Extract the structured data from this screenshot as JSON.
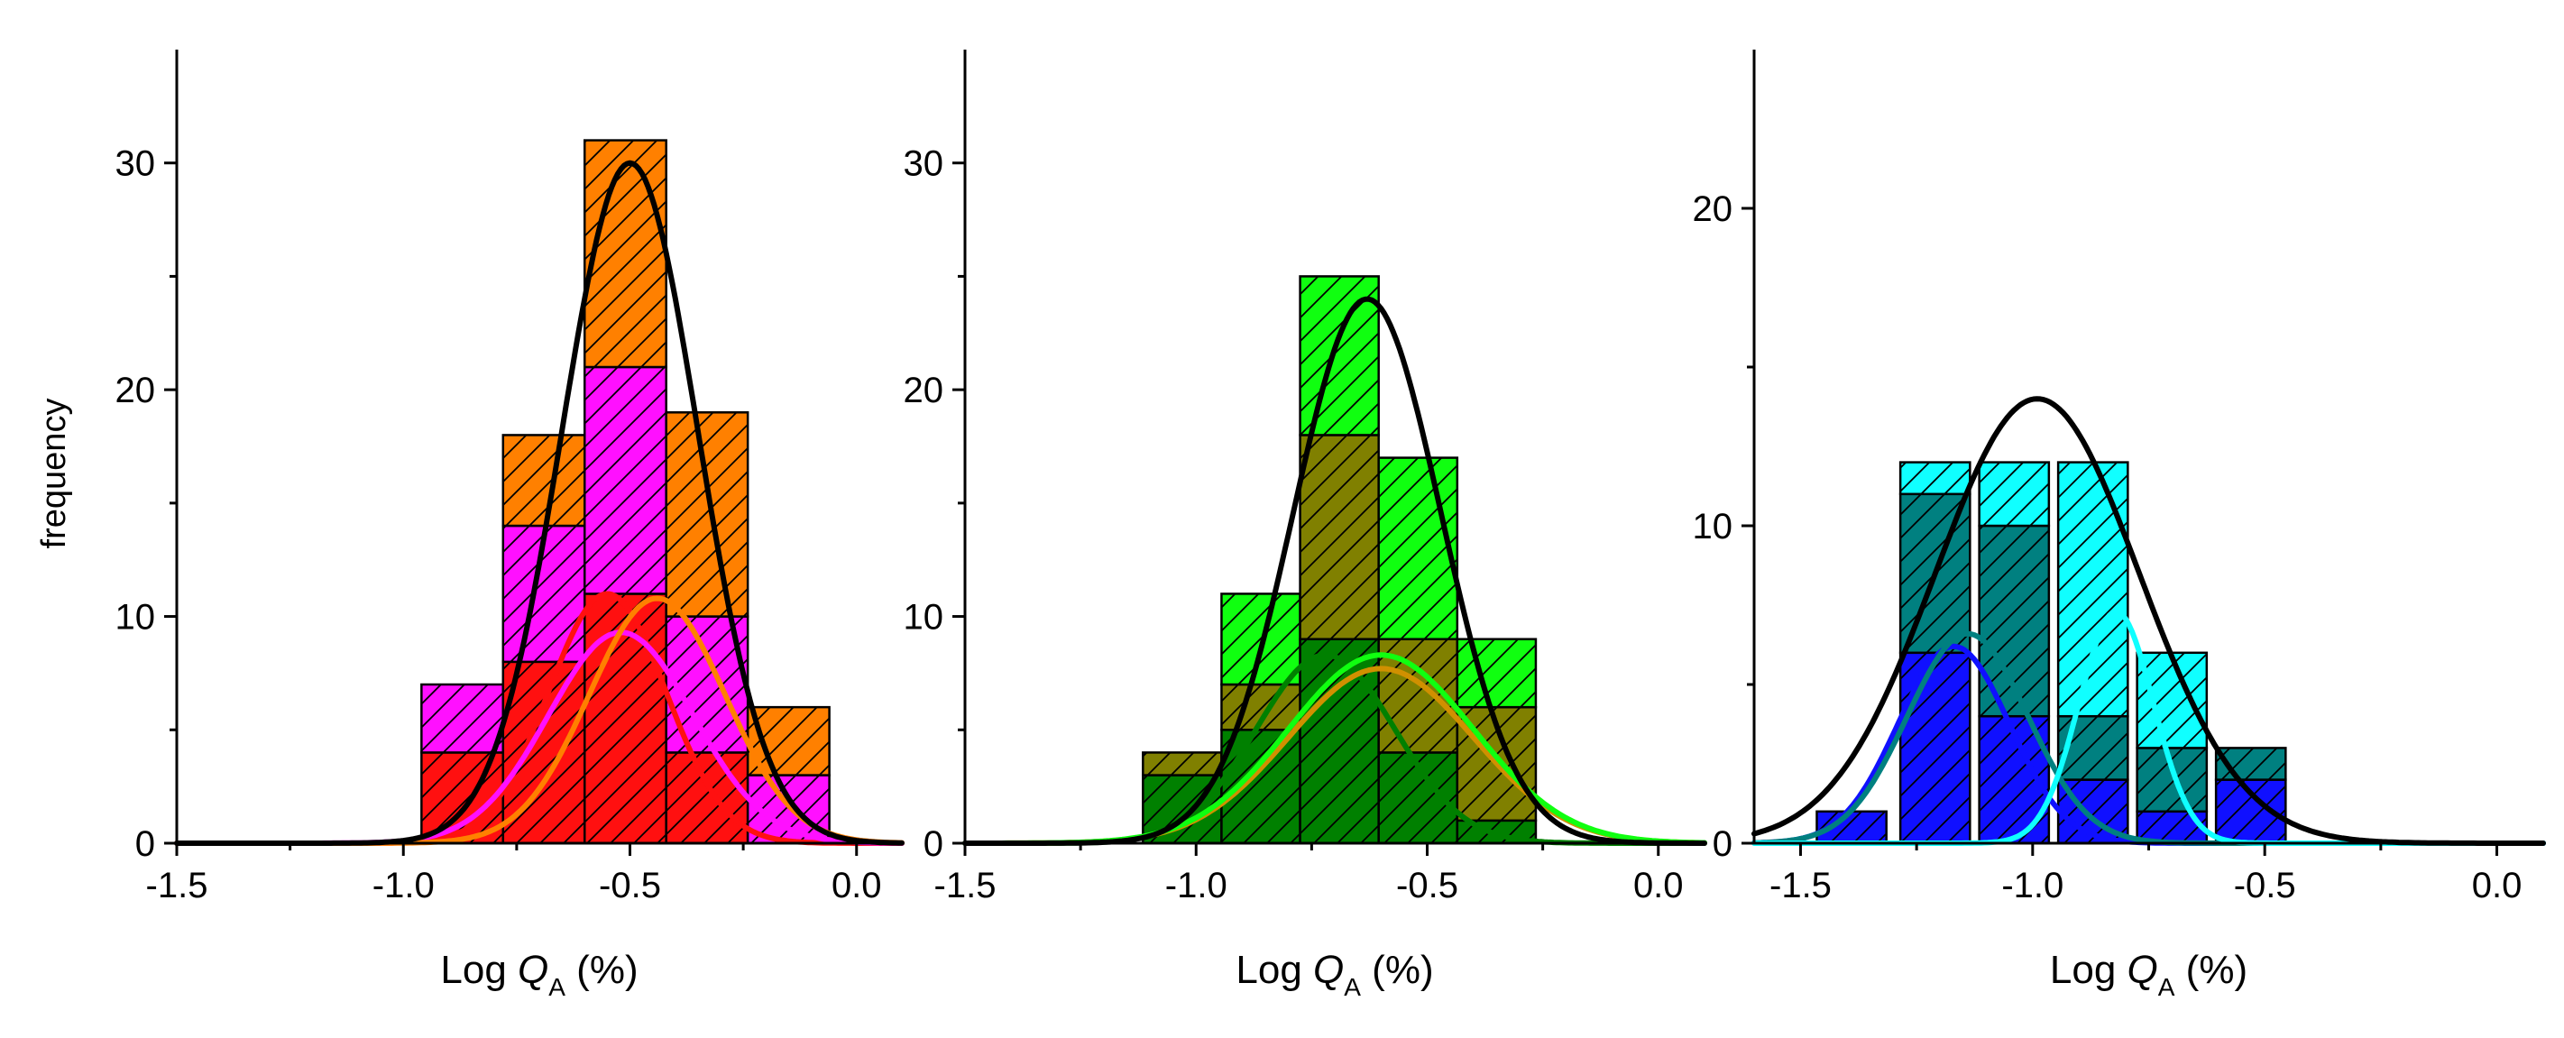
{
  "chart_data": [
    {
      "type": "bar",
      "stacked": true,
      "bin_width": 0.18,
      "bin_centers": [
        -0.87,
        -0.69,
        -0.51,
        -0.33,
        -0.15
      ],
      "series": [
        {
          "name": "red",
          "color": "#ff1010",
          "values": [
            4,
            8,
            11,
            4,
            0
          ]
        },
        {
          "name": "magenta",
          "color": "#ff10ff",
          "values": [
            3,
            6,
            10,
            6,
            3
          ]
        },
        {
          "name": "orange",
          "color": "#ff8000",
          "values": [
            0,
            4,
            10,
            9,
            3
          ]
        }
      ],
      "fits": [
        {
          "name": "total",
          "color": "#000000",
          "type": "gauss",
          "amp": 30,
          "mu": -0.5,
          "sigma": 0.15
        },
        {
          "name": "red",
          "color": "#ff1010",
          "type": "gauss",
          "amp": 11,
          "mu": -0.55,
          "sigma": 0.13
        },
        {
          "name": "magenta",
          "color": "#ff10ff",
          "type": "gauss",
          "amp": 9.3,
          "mu": -0.52,
          "sigma": 0.16
        },
        {
          "name": "orange",
          "color": "#ff8000",
          "type": "gauss",
          "amp": 10.8,
          "mu": -0.44,
          "sigma": 0.15
        }
      ],
      "xlim": [
        -1.5,
        0.1
      ],
      "ylim": [
        0,
        35
      ],
      "xticks": [
        -1.5,
        -1.0,
        -0.5,
        0.0
      ],
      "xtick_labels": [
        "-1.5",
        "-1.0",
        "-0.5",
        "0.0"
      ],
      "yticks": [
        0,
        10,
        20,
        30
      ],
      "ytick_labels": [
        "0",
        "10",
        "20",
        "30"
      ],
      "xlabel": {
        "prefix": "Log ",
        "var": "Q",
        "sub": "A",
        "suffix": " (%)"
      },
      "ylabel": "frequency"
    },
    {
      "type": "bar",
      "stacked": true,
      "bin_width": 0.17,
      "bin_centers": [
        -1.03,
        -0.86,
        -0.69,
        -0.52,
        -0.35
      ],
      "series": [
        {
          "name": "dark green",
          "color": "#008000",
          "values": [
            3,
            5,
            9,
            4,
            1
          ]
        },
        {
          "name": "olive",
          "color": "#808000",
          "values": [
            1,
            2,
            9,
            5,
            5
          ]
        },
        {
          "name": "bright green",
          "color": "#10ff10",
          "values": [
            0,
            4,
            7,
            8,
            3
          ]
        }
      ],
      "fits": [
        {
          "name": "total",
          "color": "#000000",
          "type": "gauss",
          "amp": 24,
          "mu": -0.63,
          "sigma": 0.16
        },
        {
          "name": "dark green",
          "color": "#008000",
          "type": "gauss",
          "amp": 8.3,
          "mu": -0.72,
          "sigma": 0.15
        },
        {
          "name": "olive",
          "color": "#d09000",
          "type": "gauss",
          "amp": 7.7,
          "mu": -0.6,
          "sigma": 0.2
        },
        {
          "name": "bright green",
          "color": "#10ff10",
          "type": "gauss",
          "amp": 8.3,
          "mu": -0.6,
          "sigma": 0.2
        }
      ],
      "xlim": [
        -1.5,
        0.1
      ],
      "ylim": [
        0,
        35
      ],
      "xticks": [
        -1.5,
        -1.0,
        -0.5,
        0.0
      ],
      "xtick_labels": [
        "-1.5",
        "-1.0",
        "-0.5",
        "0.0"
      ],
      "yticks": [
        0,
        10,
        20,
        30
      ],
      "ytick_labels": [
        "0",
        "10",
        "20",
        "30"
      ],
      "xlabel": {
        "prefix": "Log ",
        "var": "Q",
        "sub": "A",
        "suffix": " (%)"
      },
      "ylabel": ""
    },
    {
      "type": "bar",
      "stacked": true,
      "bin_width": 0.15,
      "bin_centers": [
        -1.39,
        -1.21,
        -1.04,
        -0.87,
        -0.7,
        -0.53
      ],
      "series": [
        {
          "name": "blue",
          "color": "#1010ff",
          "values": [
            1,
            6,
            4,
            2,
            1,
            2
          ]
        },
        {
          "name": "teal",
          "color": "#008080",
          "values": [
            0,
            5,
            6,
            2,
            2,
            1
          ]
        },
        {
          "name": "cyan",
          "color": "#10ffff",
          "values": [
            0,
            1,
            2,
            8,
            3,
            0
          ]
        }
      ],
      "fits": [
        {
          "name": "total",
          "color": "#000000",
          "type": "gauss",
          "amp": 14,
          "mu": -0.99,
          "sigma": 0.22
        },
        {
          "name": "blue",
          "color": "#1010ff",
          "type": "gauss",
          "amp": 6.2,
          "mu": -1.17,
          "sigma": 0.12
        },
        {
          "name": "teal",
          "color": "#008080",
          "type": "gauss",
          "amp": 6.6,
          "mu": -1.14,
          "sigma": 0.13
        },
        {
          "name": "cyan",
          "color": "#10ffff",
          "type": "gauss",
          "amp": 7.3,
          "mu": -0.82,
          "sigma": 0.08
        }
      ],
      "xlim": [
        -1.6,
        0.1
      ],
      "ylim": [
        0,
        25
      ],
      "xticks": [
        -1.5,
        -1.0,
        -0.5,
        0.0
      ],
      "xtick_labels": [
        "-1.5",
        "-1.0",
        "-0.5",
        "0.0"
      ],
      "yticks": [
        0,
        10,
        20
      ],
      "ytick_labels": [
        "0",
        "10",
        "20"
      ],
      "xlabel": {
        "prefix": "Log ",
        "var": "Q",
        "sub": "A",
        "suffix": " (%)"
      },
      "ylabel": ""
    }
  ]
}
